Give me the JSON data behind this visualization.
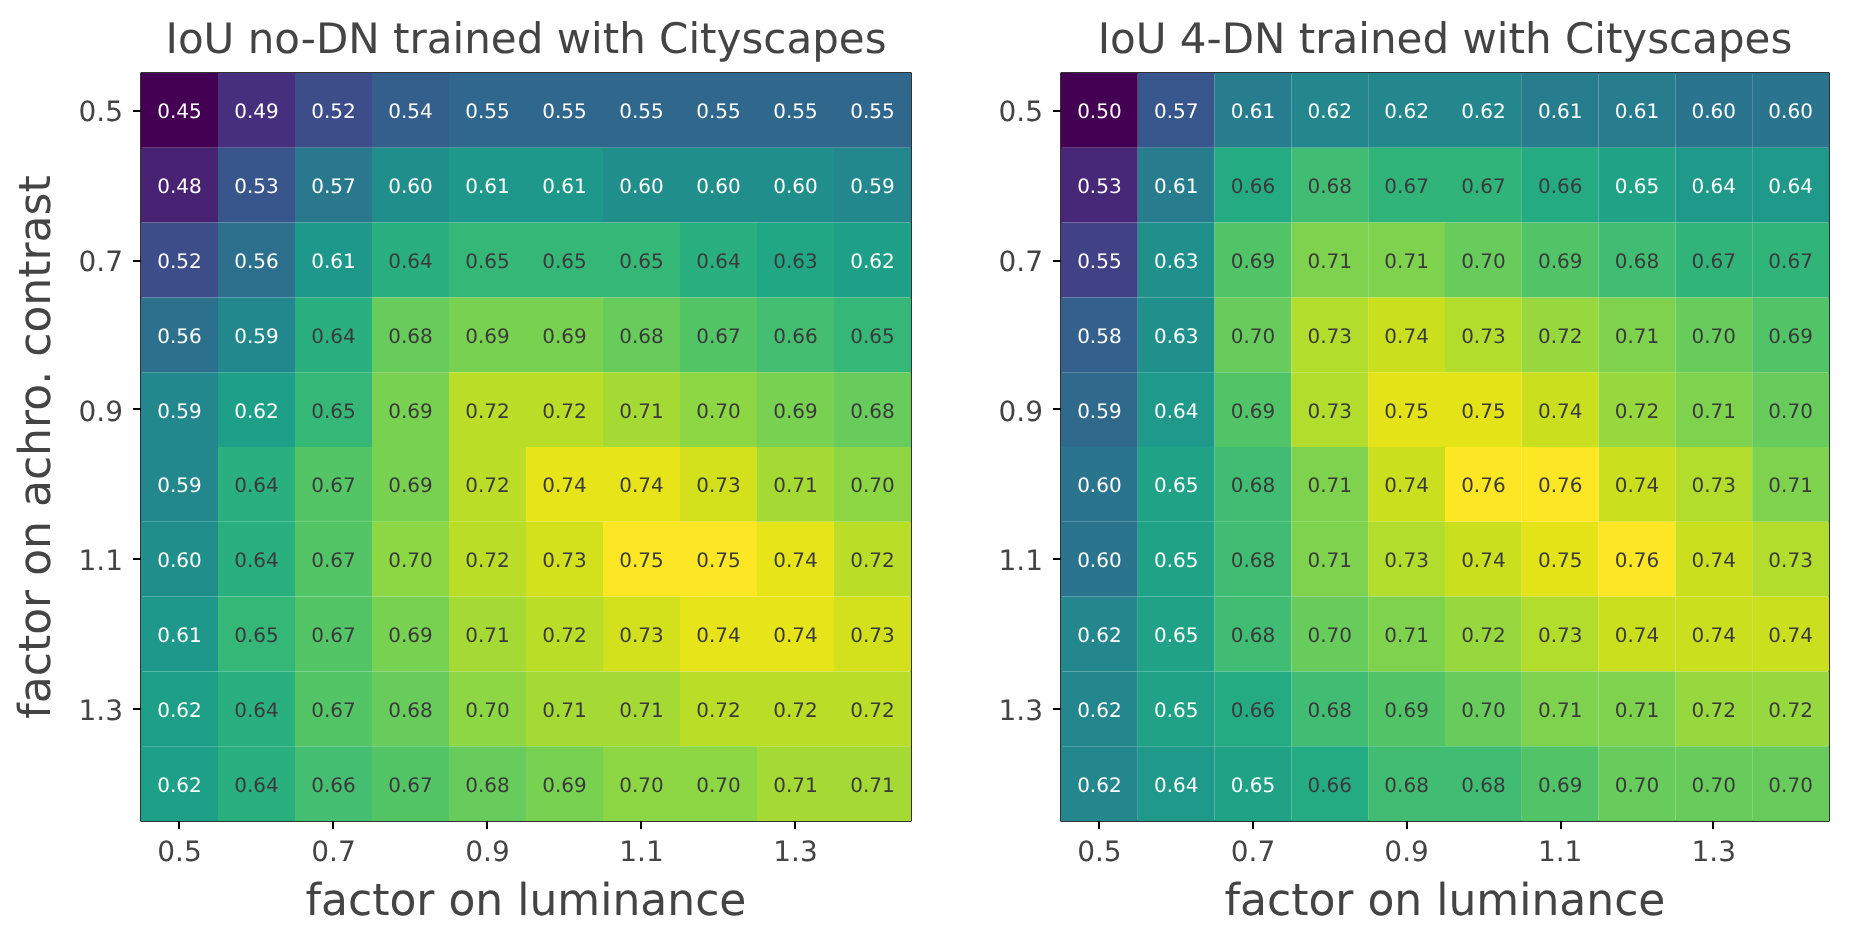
{
  "chart_data": [
    {
      "type": "heatmap",
      "title": "IoU no-DN trained with Cityscapes",
      "xlabel": "factor on luminance",
      "ylabel": "factor on achro. contrast",
      "categories": [
        "0.5",
        null,
        "0.7",
        null,
        "0.9",
        null,
        "1.1",
        null,
        "1.3",
        null
      ],
      "y_categories": [
        "0.5",
        null,
        "0.7",
        null,
        "0.9",
        null,
        "1.1",
        null,
        "1.3",
        null
      ],
      "cells": [
        [
          0.45,
          0.49,
          0.52,
          0.54,
          0.55,
          0.55,
          0.55,
          0.55,
          0.55,
          0.55
        ],
        [
          0.48,
          0.53,
          0.57,
          0.6,
          0.61,
          0.61,
          0.6,
          0.6,
          0.6,
          0.59
        ],
        [
          0.52,
          0.56,
          0.61,
          0.64,
          0.65,
          0.65,
          0.65,
          0.64,
          0.63,
          0.62
        ],
        [
          0.56,
          0.59,
          0.64,
          0.68,
          0.69,
          0.69,
          0.68,
          0.67,
          0.66,
          0.65
        ],
        [
          0.59,
          0.62,
          0.65,
          0.69,
          0.72,
          0.72,
          0.71,
          0.7,
          0.69,
          0.68
        ],
        [
          0.59,
          0.64,
          0.67,
          0.69,
          0.72,
          0.74,
          0.74,
          0.73,
          0.71,
          0.7
        ],
        [
          0.6,
          0.64,
          0.67,
          0.7,
          0.72,
          0.73,
          0.75,
          0.75,
          0.74,
          0.72
        ],
        [
          0.61,
          0.65,
          0.67,
          0.69,
          0.71,
          0.72,
          0.73,
          0.74,
          0.74,
          0.73
        ],
        [
          0.62,
          0.64,
          0.67,
          0.68,
          0.7,
          0.71,
          0.71,
          0.72,
          0.72,
          0.72
        ],
        [
          0.62,
          0.64,
          0.66,
          0.67,
          0.68,
          0.69,
          0.7,
          0.7,
          0.71,
          0.71
        ]
      ],
      "cell_labels": [
        [
          "0.45",
          "0.49",
          "0.52",
          "0.54",
          "0.55",
          "0.55",
          "0.55",
          "0.55",
          "0.55",
          "0.55"
        ],
        [
          "0.48",
          "0.53",
          "0.57",
          "0.60",
          "0.61",
          "0.61",
          "0.60",
          "0.60",
          "0.60",
          "0.59"
        ],
        [
          "0.52",
          "0.56",
          "0.61",
          "0.64",
          "0.65",
          "0.65",
          "0.65",
          "0.64",
          "0.63",
          "0.62"
        ],
        [
          "0.56",
          "0.59",
          "0.64",
          "0.68",
          "0.69",
          "0.69",
          "0.68",
          "0.67",
          "0.66",
          "0.65"
        ],
        [
          "0.59",
          "0.62",
          "0.65",
          "0.69",
          "0.72",
          "0.72",
          "0.71",
          "0.70",
          "0.69",
          "0.68"
        ],
        [
          "0.59",
          "0.64",
          "0.67",
          "0.69",
          "0.72",
          "0.74",
          "0.74",
          "0.73",
          "0.71",
          "0.70"
        ],
        [
          "0.60",
          "0.64",
          "0.67",
          "0.70",
          "0.72",
          "0.73",
          "0.75",
          "0.75",
          "0.74",
          "0.72"
        ],
        [
          "0.61",
          "0.65",
          "0.67",
          "0.69",
          "0.71",
          "0.72",
          "0.73",
          "0.74",
          "0.74",
          "0.73"
        ],
        [
          "0.62",
          "0.64",
          "0.67",
          "0.68",
          "0.70",
          "0.71",
          "0.71",
          "0.72",
          "0.72",
          "0.72"
        ],
        [
          "0.62",
          "0.64",
          "0.66",
          "0.67",
          "0.68",
          "0.69",
          "0.70",
          "0.70",
          "0.71",
          "0.71"
        ]
      ]
    },
    {
      "type": "heatmap",
      "title": "IoU 4-DN trained with Cityscapes",
      "xlabel": "factor on luminance",
      "categories": [
        "0.5",
        null,
        "0.7",
        null,
        "0.9",
        null,
        "1.1",
        null,
        "1.3",
        null
      ],
      "y_categories": [
        "0.5",
        null,
        "0.7",
        null,
        "0.9",
        null,
        "1.1",
        null,
        "1.3",
        null
      ],
      "cells": [
        [
          0.5,
          0.57,
          0.61,
          0.62,
          0.62,
          0.62,
          0.61,
          0.61,
          0.6,
          0.6
        ],
        [
          0.53,
          0.61,
          0.66,
          0.68,
          0.67,
          0.67,
          0.66,
          0.65,
          0.64,
          0.64
        ],
        [
          0.55,
          0.63,
          0.69,
          0.71,
          0.71,
          0.7,
          0.69,
          0.68,
          0.67,
          0.67
        ],
        [
          0.58,
          0.63,
          0.7,
          0.73,
          0.74,
          0.73,
          0.72,
          0.71,
          0.7,
          0.69
        ],
        [
          0.59,
          0.64,
          0.69,
          0.73,
          0.75,
          0.75,
          0.74,
          0.72,
          0.71,
          0.7
        ],
        [
          0.6,
          0.65,
          0.68,
          0.71,
          0.74,
          0.76,
          0.76,
          0.74,
          0.73,
          0.71
        ],
        [
          0.6,
          0.65,
          0.68,
          0.71,
          0.73,
          0.74,
          0.75,
          0.76,
          0.74,
          0.73
        ],
        [
          0.62,
          0.65,
          0.68,
          0.7,
          0.71,
          0.72,
          0.73,
          0.74,
          0.74,
          0.74
        ],
        [
          0.62,
          0.65,
          0.66,
          0.68,
          0.69,
          0.7,
          0.71,
          0.71,
          0.72,
          0.72
        ],
        [
          0.62,
          0.64,
          0.65,
          0.66,
          0.68,
          0.68,
          0.69,
          0.7,
          0.7,
          0.7
        ]
      ],
      "cell_labels": [
        [
          "0.50",
          "0.57",
          "0.61",
          "0.62",
          "0.62",
          "0.62",
          "0.61",
          "0.61",
          "0.60",
          "0.60"
        ],
        [
          "0.53",
          "0.61",
          "0.66",
          "0.68",
          "0.67",
          "0.67",
          "0.66",
          "0.65",
          "0.64",
          "0.64"
        ],
        [
          "0.55",
          "0.63",
          "0.69",
          "0.71",
          "0.71",
          "0.70",
          "0.69",
          "0.68",
          "0.67",
          "0.67"
        ],
        [
          "0.58",
          "0.63",
          "0.70",
          "0.73",
          "0.74",
          "0.73",
          "0.72",
          "0.71",
          "0.70",
          "0.69"
        ],
        [
          "0.59",
          "0.64",
          "0.69",
          "0.73",
          "0.75",
          "0.75",
          "0.74",
          "0.72",
          "0.71",
          "0.70"
        ],
        [
          "0.60",
          "0.65",
          "0.68",
          "0.71",
          "0.74",
          "0.76",
          "0.76",
          "0.74",
          "0.73",
          "0.71"
        ],
        [
          "0.60",
          "0.65",
          "0.68",
          "0.71",
          "0.73",
          "0.74",
          "0.75",
          "0.76",
          "0.74",
          "0.73"
        ],
        [
          "0.62",
          "0.65",
          "0.68",
          "0.70",
          "0.71",
          "0.72",
          "0.73",
          "0.74",
          "0.74",
          "0.74"
        ],
        [
          "0.62",
          "0.65",
          "0.66",
          "0.68",
          "0.69",
          "0.70",
          "0.71",
          "0.71",
          "0.72",
          "0.72"
        ],
        [
          "0.62",
          "0.64",
          "0.65",
          "0.66",
          "0.68",
          "0.68",
          "0.69",
          "0.70",
          "0.70",
          "0.70"
        ]
      ]
    }
  ]
}
